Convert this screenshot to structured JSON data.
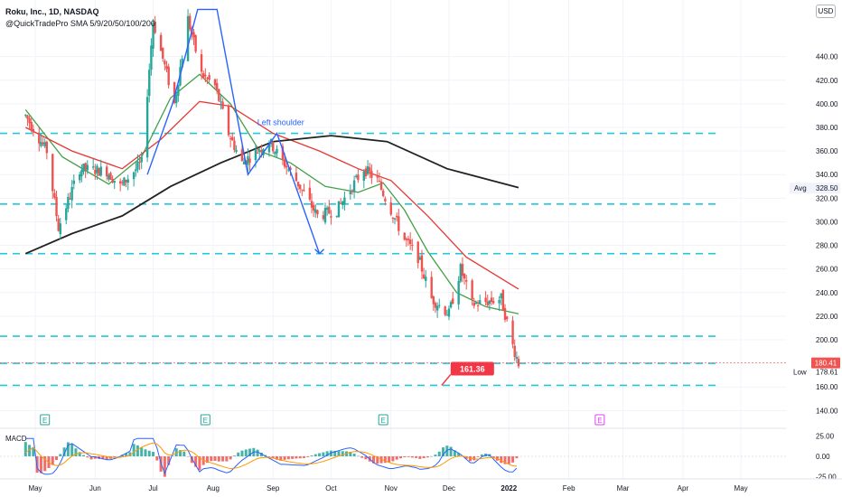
{
  "header": {
    "title": "Roku, Inc., 1D, NASDAQ",
    "indicator": "@QuickTradePro SMA 5/9/20/50/100/200",
    "currency_button": "USD"
  },
  "annotations": {
    "left_shoulder": "Left shoulder",
    "target_label": "161.36",
    "last_price_label": "180.41",
    "low_label": "Low",
    "low_value": "178.61",
    "avg_label": "Avg",
    "avg_value": "328.50"
  },
  "macd": {
    "label": "MACD",
    "ticks": [
      "25.00",
      "0.00",
      "-25.00"
    ]
  },
  "colors": {
    "up": "#26a69a",
    "down": "#ef5350",
    "sma20": "#43a047",
    "sma50": "#e53935",
    "sma200": "#222222",
    "level_line": "#26c6da",
    "pattern": "#2962ff"
  },
  "chart_data": {
    "type": "candlestick",
    "title": "Roku, Inc., 1D, NASDAQ",
    "y_axis": {
      "range": [
        128,
        488
      ],
      "ticks": [
        "140.00",
        "160.00",
        "180.00",
        "200.00",
        "220.00",
        "240.00",
        "260.00",
        "280.00",
        "300.00",
        "320.00",
        "340.00",
        "360.00",
        "380.00",
        "400.00",
        "420.00",
        "440.00"
      ]
    },
    "x_axis": {
      "ticks": [
        "May",
        "Jun",
        "Jul",
        "Aug",
        "Sep",
        "Oct",
        "Nov",
        "Dec",
        "2022",
        "Feb",
        "Mar",
        "Apr",
        "May"
      ]
    },
    "horizontal_levels": [
      375,
      315,
      273,
      203,
      180,
      161.36
    ],
    "price_path": [
      {
        "x": "2021-04-26",
        "y": 390
      },
      {
        "x": "2021-05-07",
        "y": 360
      },
      {
        "x": "2021-05-13",
        "y": 295
      },
      {
        "x": "2021-05-24",
        "y": 345
      },
      {
        "x": "2021-06-07",
        "y": 343
      },
      {
        "x": "2021-06-14",
        "y": 330
      },
      {
        "x": "2021-06-25",
        "y": 350
      },
      {
        "x": "2021-07-01",
        "y": 470
      },
      {
        "x": "2021-07-12",
        "y": 400
      },
      {
        "x": "2021-07-19",
        "y": 472
      },
      {
        "x": "2021-07-26",
        "y": 425
      },
      {
        "x": "2021-08-02",
        "y": 415
      },
      {
        "x": "2021-08-09",
        "y": 375
      },
      {
        "x": "2021-08-16",
        "y": 350
      },
      {
        "x": "2021-08-30",
        "y": 368
      },
      {
        "x": "2021-09-13",
        "y": 335
      },
      {
        "x": "2021-09-24",
        "y": 305
      },
      {
        "x": "2021-10-04",
        "y": 310
      },
      {
        "x": "2021-10-18",
        "y": 345
      },
      {
        "x": "2021-10-25",
        "y": 335
      },
      {
        "x": "2021-11-01",
        "y": 310
      },
      {
        "x": "2021-11-08",
        "y": 285
      },
      {
        "x": "2021-11-15",
        "y": 270
      },
      {
        "x": "2021-11-22",
        "y": 235
      },
      {
        "x": "2021-12-01",
        "y": 222
      },
      {
        "x": "2021-12-07",
        "y": 260
      },
      {
        "x": "2021-12-13",
        "y": 230
      },
      {
        "x": "2021-12-20",
        "y": 232
      },
      {
        "x": "2021-12-28",
        "y": 235
      },
      {
        "x": "2022-01-03",
        "y": 195
      },
      {
        "x": "2022-01-06",
        "y": 180
      }
    ],
    "series": [
      {
        "name": "SMA 20",
        "points": [
          {
            "x": "2021-04-26",
            "y": 395
          },
          {
            "x": "2021-05-15",
            "y": 355
          },
          {
            "x": "2021-06-08",
            "y": 332
          },
          {
            "x": "2021-06-25",
            "y": 355
          },
          {
            "x": "2021-07-10",
            "y": 405
          },
          {
            "x": "2021-07-25",
            "y": 425
          },
          {
            "x": "2021-08-10",
            "y": 400
          },
          {
            "x": "2021-08-25",
            "y": 360
          },
          {
            "x": "2021-09-10",
            "y": 350
          },
          {
            "x": "2021-09-28",
            "y": 330
          },
          {
            "x": "2021-10-15",
            "y": 325
          },
          {
            "x": "2021-10-28",
            "y": 333
          },
          {
            "x": "2021-11-08",
            "y": 310
          },
          {
            "x": "2021-11-20",
            "y": 275
          },
          {
            "x": "2021-12-05",
            "y": 240
          },
          {
            "x": "2021-12-20",
            "y": 228
          },
          {
            "x": "2022-01-06",
            "y": 222
          }
        ]
      },
      {
        "name": "SMA 50",
        "points": [
          {
            "x": "2021-04-26",
            "y": 380
          },
          {
            "x": "2021-05-20",
            "y": 360
          },
          {
            "x": "2021-06-15",
            "y": 345
          },
          {
            "x": "2021-07-05",
            "y": 370
          },
          {
            "x": "2021-07-25",
            "y": 402
          },
          {
            "x": "2021-08-10",
            "y": 398
          },
          {
            "x": "2021-09-01",
            "y": 375
          },
          {
            "x": "2021-09-25",
            "y": 360
          },
          {
            "x": "2021-10-15",
            "y": 345
          },
          {
            "x": "2021-11-01",
            "y": 335
          },
          {
            "x": "2021-11-20",
            "y": 305
          },
          {
            "x": "2021-12-10",
            "y": 270
          },
          {
            "x": "2022-01-06",
            "y": 243
          }
        ]
      },
      {
        "name": "SMA 200",
        "points": [
          {
            "x": "2021-04-26",
            "y": 273
          },
          {
            "x": "2021-05-20",
            "y": 290
          },
          {
            "x": "2021-06-15",
            "y": 305
          },
          {
            "x": "2021-07-10",
            "y": 330
          },
          {
            "x": "2021-08-05",
            "y": 350
          },
          {
            "x": "2021-09-01",
            "y": 368
          },
          {
            "x": "2021-10-01",
            "y": 373
          },
          {
            "x": "2021-10-30",
            "y": 368
          },
          {
            "x": "2021-11-30",
            "y": 345
          },
          {
            "x": "2022-01-06",
            "y": 329
          }
        ]
      }
    ]
  }
}
